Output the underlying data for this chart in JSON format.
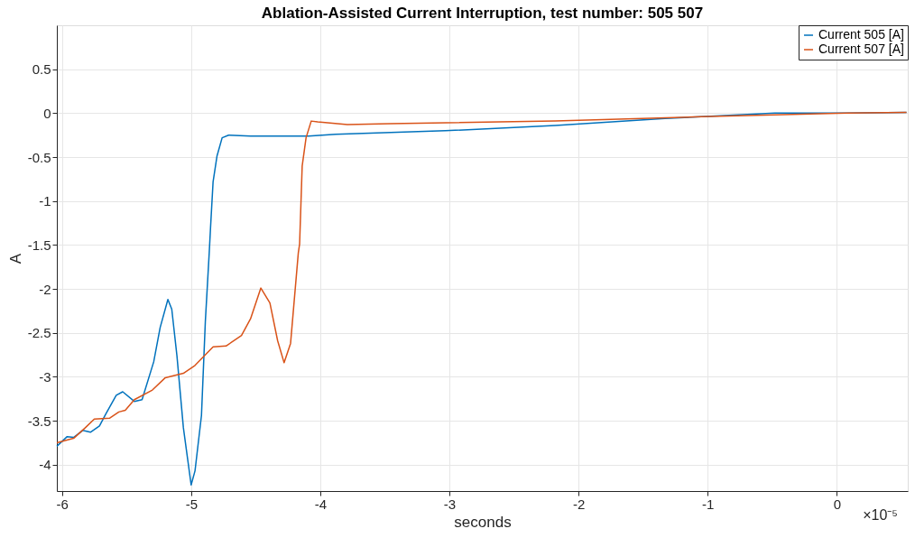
{
  "chart_data": {
    "type": "line",
    "title": "Ablation-Assisted Current Interruption, test number: 505  507",
    "xlabel": "seconds",
    "ylabel": "A",
    "annotations": [
      "×10⁻⁵"
    ],
    "xlim": [
      -6.04,
      0.55
    ],
    "xticks": [
      -6,
      -5,
      -4,
      -3,
      -2,
      -1,
      0
    ],
    "ylim": [
      -4.3,
      1
    ],
    "yticks": [
      -4,
      -3.5,
      -3,
      -2.5,
      -2,
      -1.5,
      -1,
      -0.5,
      0,
      0.5
    ],
    "grid": true,
    "legend": "top right",
    "marker": "none",
    "line_style": "solid",
    "series": [
      {
        "name": "Current 505 [A]",
        "color": "#0072bd",
        "x": [
          -6.04,
          -5.96,
          -5.91,
          -5.84,
          -5.78,
          -5.71,
          -5.66,
          -5.58,
          -5.53,
          -5.44,
          -5.38,
          -5.29,
          -5.24,
          -5.18,
          -5.15,
          -5.11,
          -5.06,
          -5.0,
          -4.97,
          -4.92,
          -4.89,
          -4.86,
          -4.85,
          -4.83,
          -4.8,
          -4.76,
          -4.71,
          -4.54,
          -4.09,
          -3.88,
          -3.03,
          -2.18,
          -1.33,
          -0.48,
          0.08,
          0.54
        ],
        "values": [
          -3.79,
          -3.68,
          -3.69,
          -3.61,
          -3.63,
          -3.56,
          -3.42,
          -3.21,
          -3.17,
          -3.28,
          -3.26,
          -2.83,
          -2.44,
          -2.12,
          -2.23,
          -2.76,
          -3.58,
          -4.23,
          -4.07,
          -3.44,
          -2.37,
          -1.59,
          -1.31,
          -0.78,
          -0.49,
          -0.28,
          -0.25,
          -0.26,
          -0.26,
          -0.24,
          -0.2,
          -0.14,
          -0.06,
          0.0,
          0.0,
          0.01
        ]
      },
      {
        "name": "Current 507 [A]",
        "color": "#d95319",
        "x": [
          -6.04,
          -5.91,
          -5.82,
          -5.75,
          -5.63,
          -5.56,
          -5.51,
          -5.44,
          -5.3,
          -5.2,
          -5.06,
          -4.97,
          -4.83,
          -4.73,
          -4.61,
          -4.54,
          -4.46,
          -4.39,
          -4.33,
          -4.28,
          -4.23,
          -4.17,
          -4.16,
          -4.14,
          -4.11,
          -4.07,
          -4.02,
          -3.79,
          -3.46,
          -2.18,
          -1.05,
          0.08,
          0.54
        ],
        "values": [
          -3.75,
          -3.7,
          -3.58,
          -3.48,
          -3.47,
          -3.4,
          -3.38,
          -3.26,
          -3.15,
          -3.01,
          -2.96,
          -2.87,
          -2.66,
          -2.65,
          -2.53,
          -2.34,
          -1.99,
          -2.16,
          -2.59,
          -2.84,
          -2.62,
          -1.59,
          -1.49,
          -0.6,
          -0.28,
          -0.09,
          -0.1,
          -0.13,
          -0.12,
          -0.09,
          -0.04,
          0.0,
          0.01
        ]
      }
    ]
  }
}
